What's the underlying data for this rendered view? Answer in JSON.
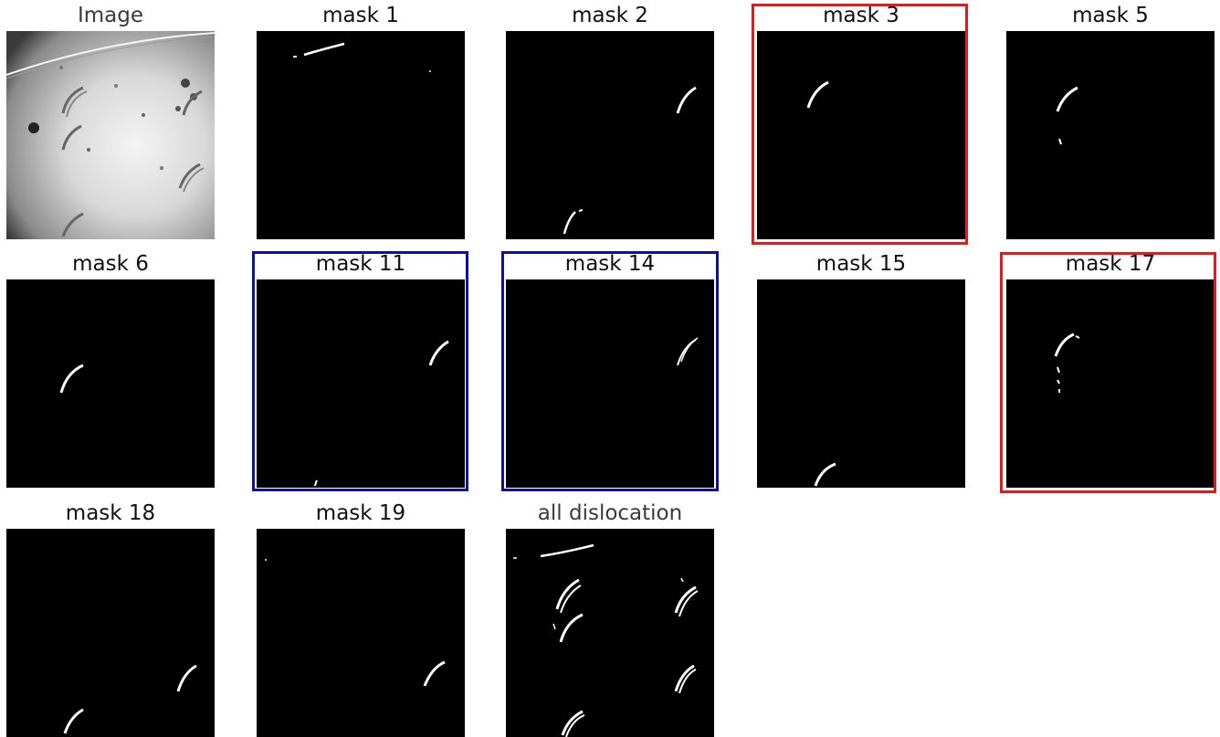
{
  "panels": [
    {
      "title": "Image",
      "frame": ""
    },
    {
      "title": "mask 1",
      "frame": ""
    },
    {
      "title": "mask 2",
      "frame": ""
    },
    {
      "title": "mask 3",
      "frame": "red"
    },
    {
      "title": "mask 5",
      "frame": ""
    },
    {
      "title": "mask 6",
      "frame": ""
    },
    {
      "title": "mask 11",
      "frame": "blue"
    },
    {
      "title": "mask 14",
      "frame": "blue"
    },
    {
      "title": "mask 15",
      "frame": ""
    },
    {
      "title": "mask 17",
      "frame": "red"
    },
    {
      "title": "mask 18",
      "frame": ""
    },
    {
      "title": "mask 19",
      "frame": ""
    },
    {
      "title": "all dislocation",
      "frame": ""
    }
  ],
  "colors": {
    "red_frame": "#e01b1b",
    "blue_frame": "#0f119a",
    "mask_background": "#000000",
    "mask_stroke": "#ffffff"
  }
}
